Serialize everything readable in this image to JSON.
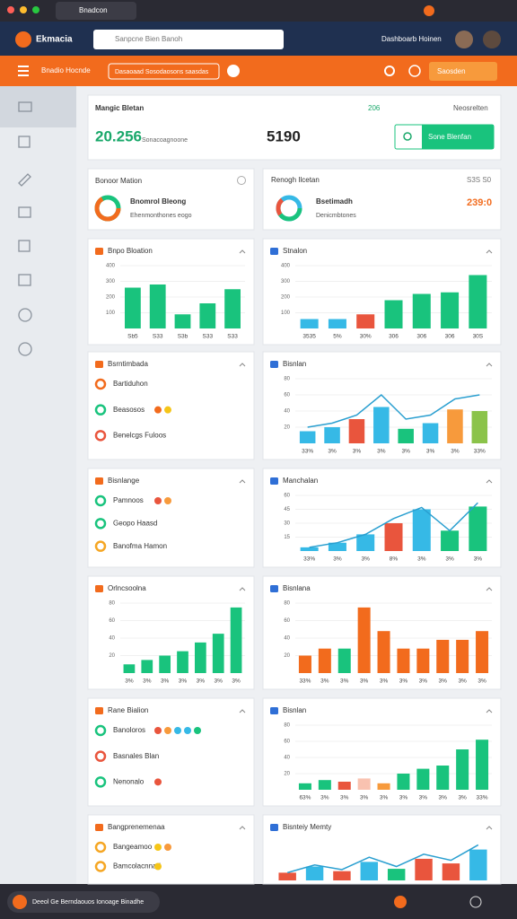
{
  "browser": {
    "tab_title": "Bnadcon"
  },
  "header": {
    "brand": "Ekmacia",
    "search": "Sanpcne Bien Banoh",
    "dashboard": "Dashboarb Hoinen"
  },
  "toolbar": {
    "menu": "Bnadio Hocnde",
    "filter": "Dasaoaad Sosodaosons saasdas",
    "save": "Saosden"
  },
  "summary": {
    "title": "Mangic Bletan",
    "tag": "206",
    "tag2": "Neosrelten",
    "value": "20.256",
    "note": "Sonacoagnoone",
    "value2": "5190",
    "button": "Sone Blenfan"
  },
  "kpis": [
    {
      "title": "Bonoor Mation",
      "label": "Bnomrol Bleong",
      "sub": "Ehenmonthones eogo"
    },
    {
      "title": "Renogh Ilcetan",
      "corner": "S3S S0",
      "label": "Bsetimadh",
      "sub": "Denicmbtones",
      "value": "239:0"
    }
  ],
  "panels": [
    {
      "kind": "bar",
      "title": "Bnpo Bloation",
      "ylim": [
        0,
        400
      ],
      "yticks": [
        100,
        200,
        300,
        400
      ],
      "categories": [
        "Sb5",
        "S33",
        "S3b",
        "S33",
        "S33"
      ],
      "values": [
        260,
        280,
        90,
        160,
        250
      ],
      "colors": [
        "#19c37d",
        "#19c37d",
        "#19c37d",
        "#19c37d",
        "#19c37d"
      ]
    },
    {
      "kind": "bar",
      "title": "Stnalon",
      "ylim": [
        0,
        400
      ],
      "yticks": [
        100,
        200,
        300,
        400
      ],
      "categories": [
        "3535",
        "5%",
        "30%",
        "306",
        "306",
        "306",
        "30S"
      ],
      "values": [
        60,
        60,
        90,
        180,
        220,
        230,
        340
      ],
      "colors": [
        "#36b9e6",
        "#36b9e6",
        "#e9553d",
        "#19c37d",
        "#19c37d",
        "#19c37d",
        "#19c37d"
      ]
    },
    {
      "kind": "list",
      "title": "Bsrntimbada",
      "items": [
        {
          "label": "Bartiduhon",
          "color": "#f26b1d",
          "dots": []
        },
        {
          "label": "Beasosos",
          "color": "#19c37d",
          "dots": [
            "#f26b1d",
            "#f5c518"
          ]
        },
        {
          "label": "Benelcgs Fuloos",
          "color": "#e9553d",
          "dots": []
        }
      ]
    },
    {
      "kind": "bar",
      "title": "Bisnlan",
      "ylim": [
        0,
        80
      ],
      "yticks": [
        20,
        40,
        60,
        80
      ],
      "categories": [
        "33%",
        "3%",
        "3%",
        "3%",
        "3%",
        "3%",
        "3%",
        "33%"
      ],
      "values": [
        15,
        20,
        30,
        45,
        18,
        25,
        42,
        40
      ],
      "colors": [
        "#36b9e6",
        "#36b9e6",
        "#e9553d",
        "#36b9e6",
        "#19c37d",
        "#36b9e6",
        "#f79a3c",
        "#8bc34a"
      ],
      "line": [
        20,
        25,
        35,
        60,
        30,
        35,
        55,
        60
      ]
    },
    {
      "kind": "list",
      "title": "Bisnlange",
      "items": [
        {
          "label": "Pamnoos",
          "color": "#19c37d",
          "dots": [
            "#e9553d",
            "#f79a3c"
          ]
        },
        {
          "label": "Geopo Haasd",
          "color": "#19c37d",
          "dots": []
        },
        {
          "label": "Banofma Hamon",
          "color": "#f5a623",
          "dots": []
        }
      ]
    },
    {
      "kind": "bar",
      "title": "Manchalan",
      "ylim": [
        0,
        60
      ],
      "yticks": [
        15,
        30,
        45,
        60
      ],
      "categories": [
        "33%",
        "3%",
        "3%",
        "8%",
        "3%",
        "3%",
        "3%"
      ],
      "values": [
        4,
        9,
        18,
        30,
        45,
        22,
        48
      ],
      "colors": [
        "#36b9e6",
        "#36b9e6",
        "#36b9e6",
        "#e9553d",
        "#36b9e6",
        "#19c37d",
        "#19c37d"
      ],
      "line": [
        4,
        9,
        18,
        35,
        47,
        22,
        52
      ]
    },
    {
      "kind": "bar",
      "title": "Orlncsoolna",
      "ylim": [
        0,
        80
      ],
      "yticks": [
        20,
        40,
        60,
        80
      ],
      "categories": [
        "3%",
        "3%",
        "3%",
        "3%",
        "3%",
        "3%",
        "3%"
      ],
      "values": [
        10,
        15,
        20,
        25,
        35,
        45,
        75
      ],
      "colors": [
        "#19c37d",
        "#19c37d",
        "#19c37d",
        "#19c37d",
        "#19c37d",
        "#19c37d",
        "#19c37d"
      ]
    },
    {
      "kind": "bar",
      "title": "Bisnlana",
      "ylim": [
        0,
        80
      ],
      "yticks": [
        20,
        40,
        60,
        80
      ],
      "categories": [
        "33%",
        "3%",
        "3%",
        "3%",
        "3%",
        "3%",
        "3%",
        "3%",
        "3%",
        "3%"
      ],
      "values": [
        20,
        28,
        28,
        75,
        48,
        28,
        28,
        38,
        38,
        48
      ],
      "colors": [
        "#f26b1d",
        "#f26b1d",
        "#19c37d",
        "#f26b1d",
        "#f26b1d",
        "#f26b1d",
        "#f26b1d",
        "#f26b1d",
        "#f26b1d",
        "#f26b1d"
      ]
    },
    {
      "kind": "list",
      "title": "Rane Bialion",
      "items": [
        {
          "label": "Banoloros",
          "color": "#19c37d",
          "dots": [
            "#e9553d",
            "#f79a3c",
            "#36b9e6",
            "#36b9e6",
            "#19c37d"
          ]
        },
        {
          "label": "Basnales Blan",
          "color": "#e9553d",
          "dots": []
        },
        {
          "label": "Nenonalo",
          "color": "#19c37d",
          "dots": [
            "#e9553d"
          ]
        }
      ]
    },
    {
      "kind": "bar",
      "title": "Bisnlan",
      "ylim": [
        0,
        80
      ],
      "yticks": [
        20,
        40,
        60,
        80
      ],
      "categories": [
        "63%",
        "3%",
        "3%",
        "3%",
        "3%",
        "3%",
        "3%",
        "3%",
        "3%",
        "33%"
      ],
      "values": [
        8,
        12,
        10,
        14,
        8,
        20,
        26,
        30,
        50,
        62
      ],
      "colors": [
        "#19c37d",
        "#19c37d",
        "#e9553d",
        "#f9c2b0",
        "#f79a3c",
        "#19c37d",
        "#19c37d",
        "#19c37d",
        "#19c37d",
        "#19c37d"
      ]
    },
    {
      "kind": "list",
      "title": "Bangprenemenaa",
      "items": [
        {
          "label": "Bangeamoo",
          "color": "#f5a623",
          "dots": [
            "#f5c518",
            "#f79a3c"
          ]
        },
        {
          "label": "Bamcolacnnad",
          "color": "#f5a623",
          "dots": [
            "#f5c518"
          ]
        }
      ]
    },
    {
      "kind": "bar",
      "title": "Bisnteiy Memty",
      "ylim": [
        0,
        50
      ],
      "yticks": [],
      "categories": [],
      "values": [
        10,
        18,
        12,
        24,
        15,
        28,
        22,
        40
      ],
      "colors": [
        "#e9553d",
        "#36b9e6",
        "#e9553d",
        "#36b9e6",
        "#19c37d",
        "#e9553d",
        "#e9553d",
        "#36b9e6"
      ],
      "line": [
        10,
        20,
        14,
        30,
        18,
        34,
        26,
        46
      ]
    }
  ],
  "bottom": {
    "status": "Deeol Ge Berndaouos Ionoage Binadhe"
  }
}
